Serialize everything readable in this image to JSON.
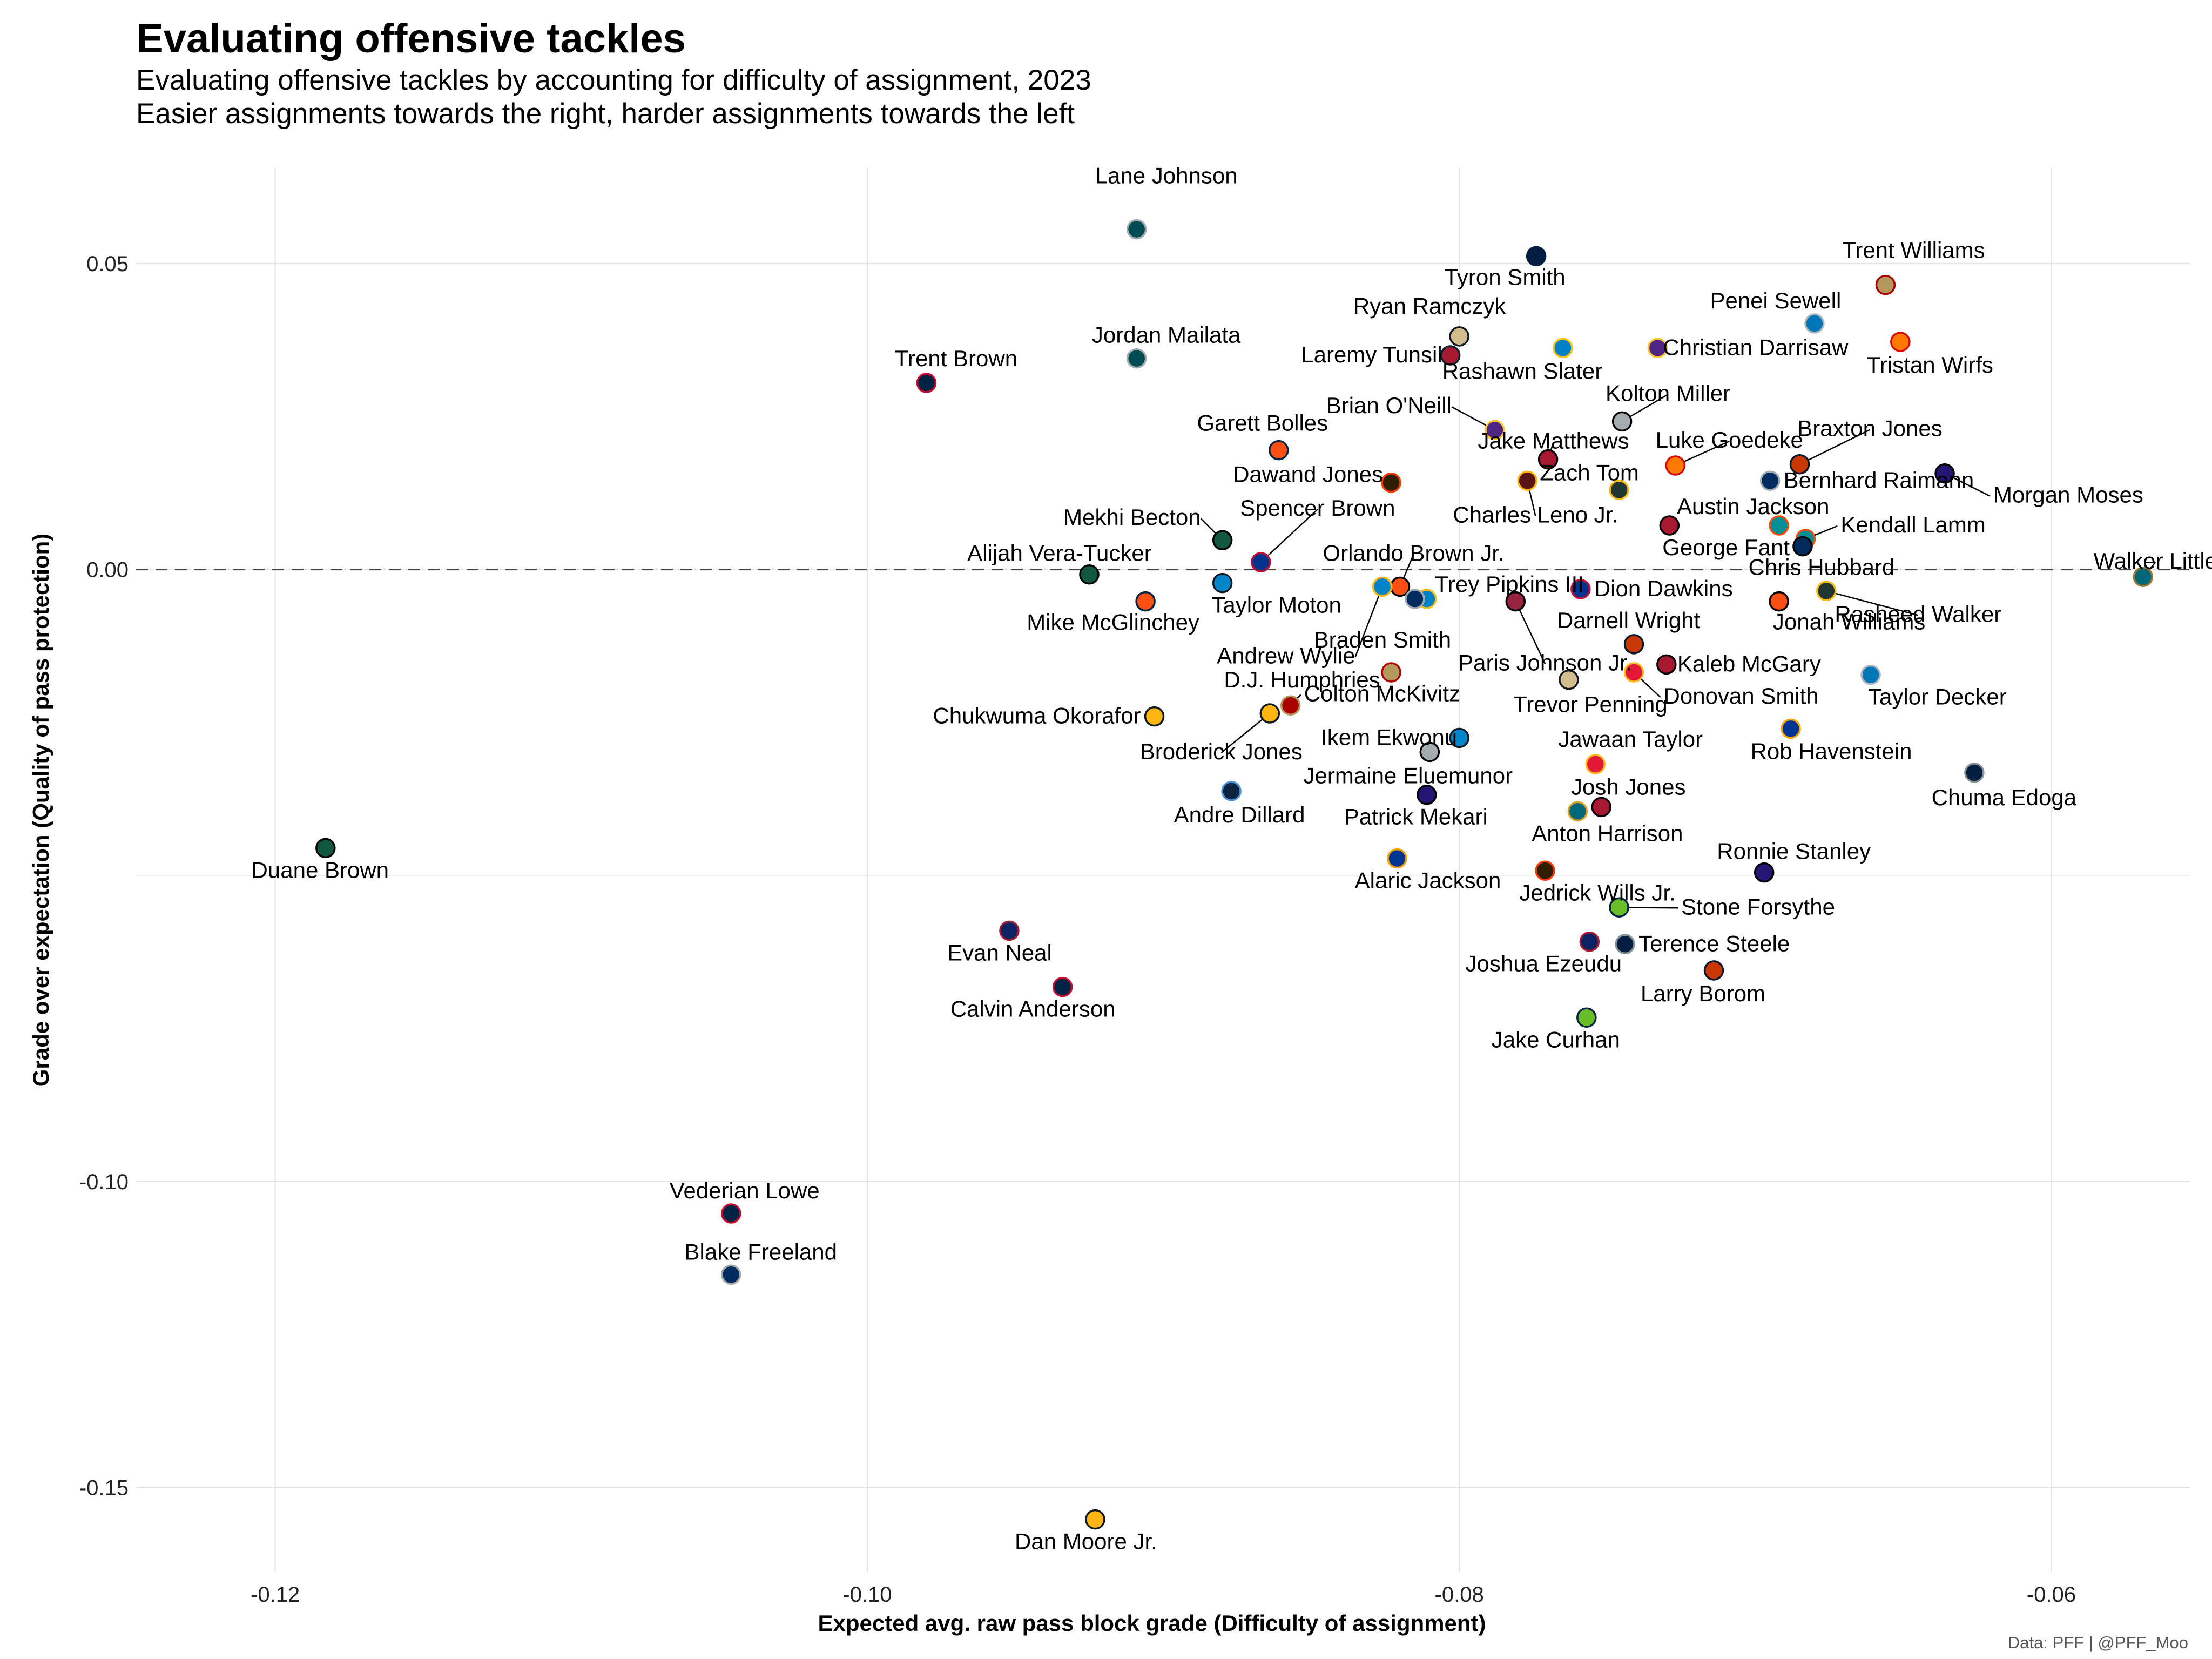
{
  "title": "Evaluating offensive tackles",
  "subtitle_1": "Evaluating offensive tackles by accounting for difficulty of assignment, 2023",
  "subtitle_2": "Easier assignments towards the right, harder assignments towards the left",
  "caption": "Data: PFF | @PFF_Moo",
  "chart_data": {
    "type": "scatter",
    "title": "Evaluating offensive tackles",
    "xlabel": "Expected avg. raw pass block grade (Difficulty of assignment)",
    "ylabel": "Grade over expectation (Quality of pass protection)",
    "xlim": [
      -0.1247,
      -0.0553
    ],
    "ylim": [
      -0.1637,
      0.0657
    ],
    "xticks": [
      -0.12,
      -0.1,
      -0.08,
      -0.06
    ],
    "xtick_labels": [
      "-0.12",
      "-0.10",
      "-0.08",
      "-0.06"
    ],
    "yticks": [
      0.05,
      0.0,
      -0.1,
      -0.15
    ],
    "ytick_labels": [
      "0.05",
      "0.00",
      "-0.10",
      "-0.15"
    ],
    "reference_line_y": 0.0,
    "grid": true,
    "points": [
      {
        "name": "Lane Johnson",
        "x": -0.0909,
        "y": 0.0556,
        "fill": "#004C54",
        "stroke": "#A5ACAF"
      },
      {
        "name": "Tyron Smith",
        "x": -0.0774,
        "y": 0.0512,
        "fill": "#041E42",
        "stroke": "#041E42"
      },
      {
        "name": "Trent Williams",
        "x": -0.0656,
        "y": 0.0465,
        "fill": "#B3995D",
        "stroke": "#AA0000"
      },
      {
        "name": "Penei Sewell",
        "x": -0.068,
        "y": 0.0402,
        "fill": "#0076B6",
        "stroke": "#B0B7BC"
      },
      {
        "name": "Tristan Wirfs",
        "x": -0.0651,
        "y": 0.0372,
        "fill": "#FF7900",
        "stroke": "#D50A0A"
      },
      {
        "name": "Ryan Ramczyk",
        "x": -0.08,
        "y": 0.0381,
        "fill": "#D3BC8D",
        "stroke": "#101820"
      },
      {
        "name": "Laremy Tunsil",
        "x": -0.0803,
        "y": 0.035,
        "fill": "#A71930",
        "stroke": "#03202F"
      },
      {
        "name": "Rashawn Slater",
        "x": -0.0765,
        "y": 0.0362,
        "fill": "#0080C6",
        "stroke": "#FFC20E"
      },
      {
        "name": "Christian Darrisaw",
        "x": -0.0733,
        "y": 0.0362,
        "fill": "#4F2683",
        "stroke": "#FFC62F"
      },
      {
        "name": "Jordan Mailata",
        "x": -0.0909,
        "y": 0.0345,
        "fill": "#004C54",
        "stroke": "#A5ACAF"
      },
      {
        "name": "Trent Brown",
        "x": -0.098,
        "y": 0.0305,
        "fill": "#002244",
        "stroke": "#C60C30"
      },
      {
        "name": "Kolton Miller",
        "x": -0.0745,
        "y": 0.0242,
        "fill": "#A5ACAF",
        "stroke": "#000000"
      },
      {
        "name": "Brian O'Neill",
        "x": -0.0788,
        "y": 0.0228,
        "fill": "#4F2683",
        "stroke": "#FFC62F"
      },
      {
        "name": "Garett Bolles",
        "x": -0.0861,
        "y": 0.0195,
        "fill": "#FB4F14",
        "stroke": "#002244"
      },
      {
        "name": "Jake Matthews",
        "x": -0.077,
        "y": 0.018,
        "fill": "#A71930",
        "stroke": "#000000"
      },
      {
        "name": "Luke Goedeke",
        "x": -0.0727,
        "y": 0.017,
        "fill": "#FF7900",
        "stroke": "#D50A0A"
      },
      {
        "name": "Braxton Jones",
        "x": -0.0685,
        "y": 0.0172,
        "fill": "#C83803",
        "stroke": "#0B162A"
      },
      {
        "name": "Morgan Moses",
        "x": -0.0636,
        "y": 0.0157,
        "fill": "#241773",
        "stroke": "#000000"
      },
      {
        "name": "Bernhard Raimann",
        "x": -0.0695,
        "y": 0.0145,
        "fill": "#002C5F",
        "stroke": "#A2AAAD"
      },
      {
        "name": "Dawand Jones",
        "x": -0.0823,
        "y": 0.0142,
        "fill": "#311D00",
        "stroke": "#FF3C00"
      },
      {
        "name": "Charles Leno Jr.",
        "x": -0.0777,
        "y": 0.0145,
        "fill": "#5A1414",
        "stroke": "#FFB612"
      },
      {
        "name": "Zach Tom",
        "x": -0.0746,
        "y": 0.013,
        "fill": "#203731",
        "stroke": "#FFB612"
      },
      {
        "name": "Mekhi Becton",
        "x": -0.088,
        "y": 0.0048,
        "fill": "#125740",
        "stroke": "#000000"
      },
      {
        "name": "Austin Jackson",
        "x": -0.0729,
        "y": 0.0072,
        "fill": "#A71930",
        "stroke": "#000000"
      },
      {
        "name": "Spencer Brown",
        "x": -0.0867,
        "y": 0.0012,
        "fill": "#00338D",
        "stroke": "#C60C30"
      },
      {
        "name": "Kendall Lamm",
        "x": -0.0683,
        "y": 0.005,
        "fill": "#008E97",
        "stroke": "#FC4C02"
      },
      {
        "name": "George Fant",
        "x": -0.0692,
        "y": 0.0072,
        "fill": "#008E97",
        "stroke": "#FC4C02"
      },
      {
        "name": "Chris Hubbard",
        "x": -0.0684,
        "y": 0.0038,
        "fill": "#002A5C",
        "stroke": "#000000"
      },
      {
        "name": "Alijah Vera-Tucker",
        "x": -0.0925,
        "y": -0.0008,
        "fill": "#125740",
        "stroke": "#000000"
      },
      {
        "name": "Walker Little",
        "x": -0.0569,
        "y": -0.0012,
        "fill": "#006778",
        "stroke": "#9F792C"
      },
      {
        "name": "Orlando Brown Jr.",
        "x": -0.082,
        "y": -0.0028,
        "fill": "#FB4F14",
        "stroke": "#000000"
      },
      {
        "name": "Trey Pipkins III",
        "x": -0.0811,
        "y": -0.0048,
        "fill": "#0080C6",
        "stroke": "#FFC20E"
      },
      {
        "name": "Dion Dawkins",
        "x": -0.0759,
        "y": -0.0032,
        "fill": "#00338D",
        "stroke": "#C60C30"
      },
      {
        "name": "Rasheed Walker",
        "x": -0.0676,
        "y": -0.0035,
        "fill": "#203731",
        "stroke": "#FFB612"
      },
      {
        "name": "Taylor Moton",
        "x": -0.088,
        "y": -0.0022,
        "fill": "#0085CA",
        "stroke": "#101820"
      },
      {
        "name": "Mike McGlinchey",
        "x": -0.0906,
        "y": -0.0052,
        "fill": "#FB4F14",
        "stroke": "#002244"
      },
      {
        "name": "Andrew Wylie",
        "x": -0.0826,
        "y": -0.0028,
        "fill": "#0085CA",
        "stroke": "#FFB612"
      },
      {
        "name": "Braden Smith",
        "x": -0.0815,
        "y": -0.0048,
        "fill": "#002C5F",
        "stroke": "#A2AAAD"
      },
      {
        "name": "Paris Johnson Jr.",
        "x": -0.0781,
        "y": -0.0052,
        "fill": "#97233F",
        "stroke": "#000000"
      },
      {
        "name": "Jonah Williams",
        "x": -0.0692,
        "y": -0.0052,
        "fill": "#FB4F14",
        "stroke": "#000000"
      },
      {
        "name": "Darnell Wright",
        "x": -0.0741,
        "y": -0.0122,
        "fill": "#C83803",
        "stroke": "#0B162A"
      },
      {
        "name": "Kaleb McGary",
        "x": -0.073,
        "y": -0.0155,
        "fill": "#A71930",
        "stroke": "#000000"
      },
      {
        "name": "D.J. Humphries",
        "x": -0.0823,
        "y": -0.0168,
        "fill": "#B3995D",
        "stroke": "#AA0000"
      },
      {
        "name": "Taylor Decker",
        "x": -0.0661,
        "y": -0.0172,
        "fill": "#0076B6",
        "stroke": "#B0B7BC"
      },
      {
        "name": "Donovan Smith",
        "x": -0.0741,
        "y": -0.0168,
        "fill": "#E31837",
        "stroke": "#FFB81C"
      },
      {
        "name": "Trevor Penning",
        "x": -0.0763,
        "y": -0.018,
        "fill": "#D3BC8D",
        "stroke": "#101820"
      },
      {
        "name": "Colton McKivitz",
        "x": -0.0857,
        "y": -0.0222,
        "fill": "#AA0000",
        "stroke": "#B3995D"
      },
      {
        "name": "Chukwuma Okorafor",
        "x": -0.0903,
        "y": -0.024,
        "fill": "#FFB612",
        "stroke": "#101820"
      },
      {
        "name": "Broderick Jones",
        "x": -0.0864,
        "y": -0.0235,
        "fill": "#FFB612",
        "stroke": "#101820"
      },
      {
        "name": "Rob Havenstein",
        "x": -0.0688,
        "y": -0.026,
        "fill": "#003594",
        "stroke": "#FFA300"
      },
      {
        "name": "Ikem Ekwonu",
        "x": -0.08,
        "y": -0.0275,
        "fill": "#0085CA",
        "stroke": "#101820"
      },
      {
        "name": "Jermaine Eluemunor",
        "x": -0.081,
        "y": -0.0298,
        "fill": "#A5ACAF",
        "stroke": "#000000"
      },
      {
        "name": "Jawaan Taylor",
        "x": -0.0754,
        "y": -0.0318,
        "fill": "#E31837",
        "stroke": "#FFB81C"
      },
      {
        "name": "Chuma Edoga",
        "x": -0.0626,
        "y": -0.0332,
        "fill": "#041E42",
        "stroke": "#869397"
      },
      {
        "name": "Andre Dillard",
        "x": -0.0877,
        "y": -0.0362,
        "fill": "#0C2340",
        "stroke": "#4B92DB"
      },
      {
        "name": "Patrick Mekari",
        "x": -0.0811,
        "y": -0.0368,
        "fill": "#241773",
        "stroke": "#000000"
      },
      {
        "name": "Josh Jones",
        "x": -0.0752,
        "y": -0.0388,
        "fill": "#A71930",
        "stroke": "#000000"
      },
      {
        "name": "Anton Harrison",
        "x": -0.076,
        "y": -0.0395,
        "fill": "#006778",
        "stroke": "#D7A22A"
      },
      {
        "name": "Alaric Jackson",
        "x": -0.0821,
        "y": -0.0472,
        "fill": "#003594",
        "stroke": "#FFA300"
      },
      {
        "name": "Ronnie Stanley",
        "x": -0.0697,
        "y": -0.0495,
        "fill": "#241773",
        "stroke": "#000000"
      },
      {
        "name": "Jedrick Wills Jr.",
        "x": -0.0771,
        "y": -0.0492,
        "fill": "#311D00",
        "stroke": "#FF3C00"
      },
      {
        "name": "Duane Brown",
        "x": -0.1183,
        "y": -0.0455,
        "fill": "#125740",
        "stroke": "#000000"
      },
      {
        "name": "Stone Forsythe",
        "x": -0.0746,
        "y": -0.0552,
        "fill": "#69BE28",
        "stroke": "#002244"
      },
      {
        "name": "Evan Neal",
        "x": -0.0952,
        "y": -0.059,
        "fill": "#0B2265",
        "stroke": "#A71930"
      },
      {
        "name": "Joshua Ezeudu",
        "x": -0.0756,
        "y": -0.0608,
        "fill": "#0B2265",
        "stroke": "#A71930"
      },
      {
        "name": "Terence Steele",
        "x": -0.0744,
        "y": -0.0612,
        "fill": "#041E42",
        "stroke": "#869397"
      },
      {
        "name": "Calvin Anderson",
        "x": -0.0934,
        "y": -0.0682,
        "fill": "#002244",
        "stroke": "#C60C30"
      },
      {
        "name": "Larry Borom",
        "x": -0.0714,
        "y": -0.0655,
        "fill": "#C83803",
        "stroke": "#0B162A"
      },
      {
        "name": "Jake Curhan",
        "x": -0.0757,
        "y": -0.0732,
        "fill": "#69BE28",
        "stroke": "#002244"
      },
      {
        "name": "Vederian Lowe",
        "x": -0.1046,
        "y": -0.1052,
        "fill": "#002244",
        "stroke": "#C60C30"
      },
      {
        "name": "Blake Freeland",
        "x": -0.1046,
        "y": -0.1152,
        "fill": "#002C5F",
        "stroke": "#A2AAAD"
      },
      {
        "name": "Dan Moore Jr.",
        "x": -0.0923,
        "y": -0.1552,
        "fill": "#FFB612",
        "stroke": "#101820"
      }
    ]
  }
}
